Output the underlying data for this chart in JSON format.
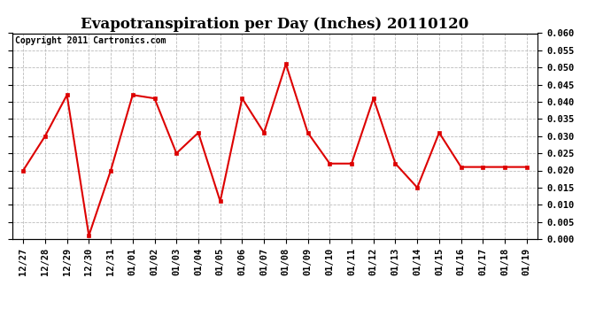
{
  "title": "Evapotranspiration per Day (Inches) 20110120",
  "copyright_text": "Copyright 2011 Cartronics.com",
  "labels": [
    "12/27",
    "12/28",
    "12/29",
    "12/30",
    "12/31",
    "01/01",
    "01/02",
    "01/03",
    "01/04",
    "01/05",
    "01/06",
    "01/07",
    "01/08",
    "01/09",
    "01/10",
    "01/11",
    "01/12",
    "01/13",
    "01/14",
    "01/15",
    "01/16",
    "01/17",
    "01/18",
    "01/19"
  ],
  "values": [
    0.02,
    0.03,
    0.042,
    0.001,
    0.02,
    0.042,
    0.041,
    0.025,
    0.031,
    0.011,
    0.041,
    0.031,
    0.051,
    0.031,
    0.022,
    0.022,
    0.041,
    0.022,
    0.015,
    0.031,
    0.021,
    0.021,
    0.021,
    0.021
  ],
  "line_color": "#dd0000",
  "marker": "s",
  "marker_size": 3,
  "ylim": [
    0.0,
    0.06
  ],
  "yticks": [
    0.0,
    0.005,
    0.01,
    0.015,
    0.02,
    0.025,
    0.03,
    0.035,
    0.04,
    0.045,
    0.05,
    0.055,
    0.06
  ],
  "grid_color": "#bbbbbb",
  "bg_color": "#ffffff",
  "plot_bg_color": "#ffffff",
  "title_fontsize": 12,
  "copyright_fontsize": 7,
  "tick_labelsize": 7.5,
  "linewidth": 1.5
}
